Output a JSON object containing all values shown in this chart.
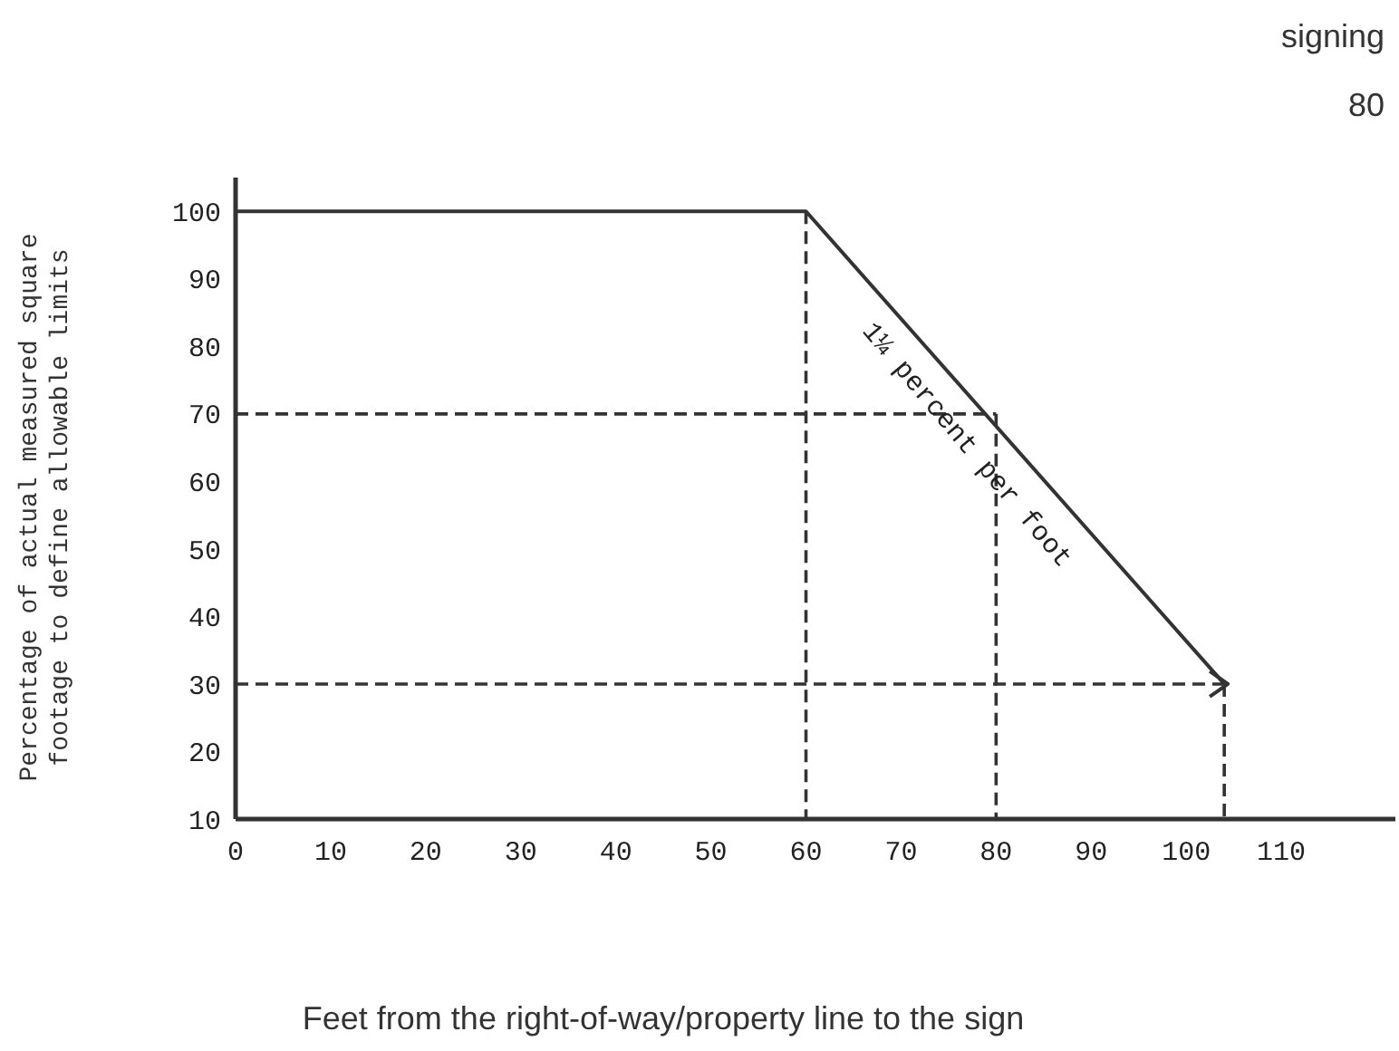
{
  "chart_data": {
    "type": "line",
    "xlabel": "Feet from the right-of-way/property line to the sign",
    "ylabel": "Percentage of actual measured square footage to define allowable limits",
    "annotations": [
      "signing",
      "80",
      "1¼ percent per foot"
    ],
    "series": [
      {
        "color": "#333333",
        "x": [
          0,
          60,
          104
        ],
        "values": [
          100,
          100,
          30
        ],
        "line_style": "solid"
      },
      {
        "color": "#333333",
        "x": [
          0,
          80
        ],
        "values": [
          70,
          70
        ],
        "line_style": "dashed"
      },
      {
        "color": "#333333",
        "x": [
          80,
          80
        ],
        "values": [
          70,
          10
        ],
        "line_style": "dashed"
      },
      {
        "color": "#333333",
        "x": [
          60,
          60
        ],
        "values": [
          100,
          10
        ],
        "line_style": "dashed"
      },
      {
        "color": "#333333",
        "x": [
          104,
          104
        ],
        "values": [
          30,
          10
        ],
        "line_style": "dashed"
      }
    ],
    "ref_lines": [
      {
        "axis": "y",
        "value": 30,
        "color": "#333333",
        "line_style": "dashed"
      }
    ],
    "marker": "none",
    "grid": false,
    "xlim": [
      0,
      122
    ],
    "xticks": [
      0,
      10,
      20,
      30,
      40,
      50,
      60,
      70,
      80,
      90,
      100,
      110
    ],
    "ylim": [
      10,
      105
    ],
    "yticks": [
      10,
      20,
      30,
      40,
      50,
      60,
      70,
      80,
      90,
      100
    ]
  }
}
